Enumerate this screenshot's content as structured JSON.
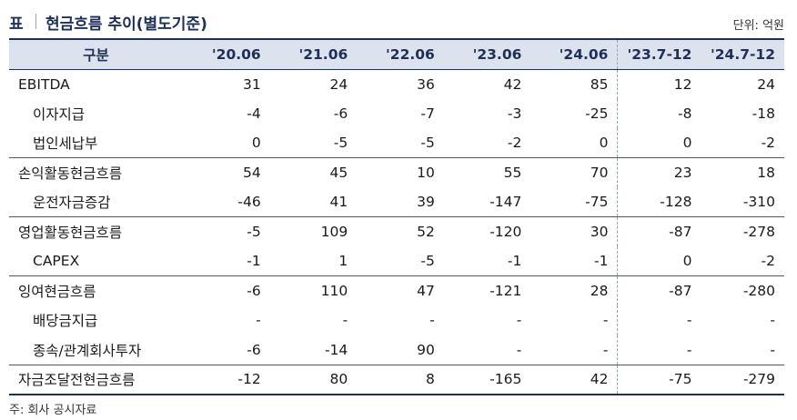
{
  "title": {
    "tag": "표",
    "text": "현금흐름 추이(별도기준)",
    "unit": "단위: 억원"
  },
  "table": {
    "headers": [
      "구분",
      "'20.06",
      "'21.06",
      "'22.06",
      "'23.06",
      "'24.06",
      "'23.7-12",
      "'24.7-12"
    ],
    "rows": [
      {
        "label": "EBITDA",
        "sub": false,
        "values": [
          "31",
          "24",
          "36",
          "42",
          "85",
          "12",
          "24"
        ]
      },
      {
        "label": "이자지급",
        "sub": true,
        "values": [
          "-4",
          "-6",
          "-7",
          "-3",
          "-25",
          "-8",
          "-18"
        ]
      },
      {
        "label": "법인세납부",
        "sub": true,
        "values": [
          "0",
          "-5",
          "-5",
          "-2",
          "0",
          "0",
          "-2"
        ]
      },
      {
        "label": "손익활동현금흐름",
        "sub": false,
        "values": [
          "54",
          "45",
          "10",
          "55",
          "70",
          "23",
          "18"
        ]
      },
      {
        "label": "운전자금증감",
        "sub": true,
        "values": [
          "-46",
          "41",
          "39",
          "-147",
          "-75",
          "-128",
          "-310"
        ]
      },
      {
        "label": "영업활동현금흐름",
        "sub": false,
        "values": [
          "-5",
          "109",
          "52",
          "-120",
          "30",
          "-87",
          "-278"
        ]
      },
      {
        "label": "CAPEX",
        "sub": true,
        "values": [
          "-1",
          "1",
          "-5",
          "-1",
          "-1",
          "0",
          "-2"
        ]
      },
      {
        "label": "잉여현금흐름",
        "sub": false,
        "values": [
          "-6",
          "110",
          "47",
          "-121",
          "28",
          "-87",
          "-280"
        ]
      },
      {
        "label": "배당금지급",
        "sub": true,
        "values": [
          "-",
          "-",
          "-",
          "-",
          "-",
          "-",
          "-"
        ]
      },
      {
        "label": "종속/관계회사투자",
        "sub": true,
        "values": [
          "-6",
          "-14",
          "90",
          "-",
          "-",
          "-",
          "-"
        ]
      },
      {
        "label": "자금조달전현금흐름",
        "sub": false,
        "values": [
          "-12",
          "80",
          "8",
          "-165",
          "42",
          "-75",
          "-279"
        ]
      }
    ]
  },
  "source": "주: 회사 공시자료",
  "colors": {
    "accent": "#1f2f55",
    "header_bg": "#dde3ee"
  }
}
